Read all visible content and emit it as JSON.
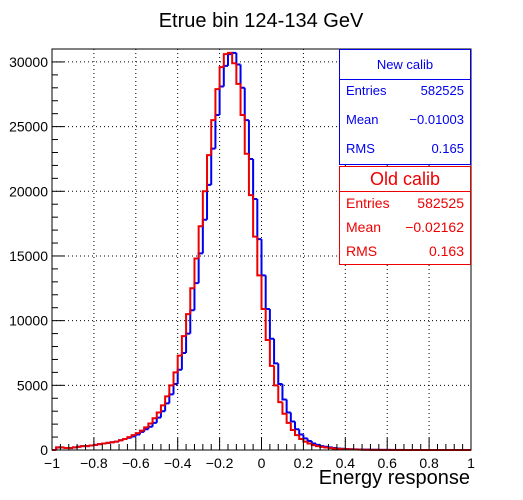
{
  "chart_data": {
    "type": "histogram",
    "title": "Etrue bin 124-134 GeV",
    "xlabel": "Energy response",
    "ylabel": "",
    "xlim": [
      -1,
      1
    ],
    "ylim": [
      0,
      31000
    ],
    "bin_width": 0.02,
    "x_ticks": [
      -1,
      -0.8,
      -0.6,
      -0.4,
      -0.2,
      0,
      0.2,
      0.4,
      0.6,
      0.8,
      1
    ],
    "x_tick_labels": [
      "−1",
      "−0.8",
      "−0.6",
      "−0.4",
      "−0.2",
      "0",
      "0.2",
      "0.4",
      "0.6",
      "0.8",
      "1"
    ],
    "y_ticks": [
      0,
      5000,
      10000,
      15000,
      20000,
      25000,
      30000
    ],
    "y_tick_labels": [
      "0",
      "5000",
      "10000",
      "15000",
      "20000",
      "25000",
      "30000"
    ],
    "grid": true,
    "series": [
      {
        "name": "New calib",
        "color": "#0000ee",
        "values": [
          0,
          200,
          200,
          150,
          150,
          200,
          250,
          300,
          300,
          350,
          400,
          450,
          500,
          550,
          600,
          650,
          750,
          850,
          950,
          1050,
          1200,
          1400,
          1600,
          1800,
          2100,
          2500,
          3000,
          3600,
          4300,
          5100,
          6200,
          7500,
          9000,
          10800,
          12900,
          15200,
          17800,
          20500,
          23300,
          25900,
          28100,
          29700,
          30600,
          30700,
          29800,
          28000,
          25500,
          22500,
          19400,
          16300,
          13500,
          10900,
          8600,
          6700,
          5100,
          3900,
          2900,
          2200,
          1600,
          1200,
          900,
          700,
          500,
          400,
          300,
          250,
          200,
          150,
          120,
          100,
          80,
          60,
          50,
          40,
          30,
          25,
          20,
          15,
          10,
          10,
          5,
          5,
          5,
          5,
          0,
          0,
          0,
          0,
          0,
          0,
          0,
          0,
          0,
          0,
          0,
          0,
          0,
          0,
          0,
          0
        ],
        "stats": {
          "entries": "582525",
          "mean": "−0.01003",
          "rms": "0.165"
        }
      },
      {
        "name": "Old calib",
        "color": "#ee0000",
        "values": [
          0,
          200,
          200,
          150,
          150,
          200,
          250,
          300,
          300,
          350,
          400,
          450,
          500,
          550,
          600,
          650,
          750,
          850,
          1000,
          1150,
          1300,
          1500,
          1750,
          2050,
          2450,
          2900,
          3450,
          4150,
          5000,
          6000,
          7300,
          8800,
          10500,
          12500,
          14800,
          17300,
          20000,
          22800,
          25500,
          27900,
          29600,
          30600,
          30700,
          29900,
          28300,
          25900,
          22900,
          19700,
          16500,
          13500,
          10900,
          8500,
          6500,
          5000,
          3700,
          2800,
          2100,
          1550,
          1150,
          850,
          650,
          500,
          380,
          300,
          240,
          190,
          150,
          120,
          90,
          70,
          55,
          45,
          35,
          25,
          20,
          15,
          12,
          10,
          8,
          5,
          5,
          5,
          0,
          0,
          0,
          0,
          0,
          0,
          0,
          0,
          0,
          0,
          0,
          0,
          0,
          0,
          0,
          0,
          0,
          0
        ],
        "stats": {
          "entries": "582525",
          "mean": "−0.02162",
          "rms": "0.163"
        }
      }
    ],
    "stats_labels": {
      "entries": "Entries",
      "mean": "Mean",
      "rms": "RMS"
    }
  }
}
